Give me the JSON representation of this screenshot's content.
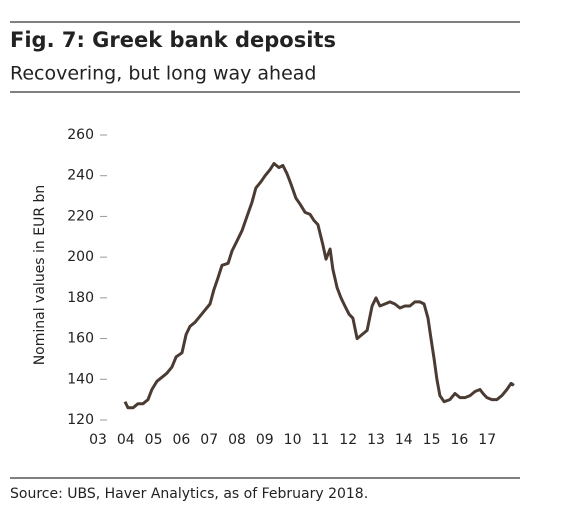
{
  "chart_data": {
    "type": "line",
    "title": "Fig. 7: Greek bank deposits",
    "subtitle": "Recovering, but long way ahead",
    "y_label": "Nominal values in EUR bn",
    "source": "Source: UBS, Haver Analytics, as of February 2018.",
    "series": [
      {
        "name": "Greek bank deposits",
        "color": "#4a3b33",
        "x": [
          2003.97,
          2004.08,
          2004.26,
          2004.44,
          2004.62,
          2004.8,
          2004.94,
          2005.12,
          2005.3,
          2005.48,
          2005.66,
          2005.81,
          2006.02,
          2006.17,
          2006.31,
          2006.49,
          2006.67,
          2006.85,
          2007.03,
          2007.17,
          2007.32,
          2007.46,
          2007.68,
          2007.82,
          2008.0,
          2008.18,
          2008.36,
          2008.54,
          2008.68,
          2008.86,
          2009.01,
          2009.19,
          2009.33,
          2009.51,
          2009.65,
          2009.8,
          2009.94,
          2010.12,
          2010.27,
          2010.45,
          2010.63,
          2010.77,
          2010.91,
          2011.09,
          2011.2,
          2011.35,
          2011.45,
          2011.6,
          2011.74,
          2011.88,
          2012.03,
          2012.17,
          2012.32,
          2012.5,
          2012.68,
          2012.86,
          2013.0,
          2013.14,
          2013.32,
          2013.5,
          2013.68,
          2013.86,
          2014.04,
          2014.22,
          2014.4,
          2014.58,
          2014.73,
          2014.87,
          2014.98,
          2015.09,
          2015.19,
          2015.3,
          2015.45,
          2015.66,
          2015.84,
          2016.02,
          2016.2,
          2016.38,
          2016.56,
          2016.74,
          2016.85,
          2016.99,
          2017.17,
          2017.35,
          2017.53,
          2017.71,
          2017.86,
          2017.96
        ],
        "values": [
          129,
          126,
          126,
          128,
          128,
          130,
          135,
          139,
          141,
          143,
          146,
          151,
          153,
          162,
          166,
          168,
          171,
          174,
          177,
          184,
          190,
          196,
          197,
          203,
          208,
          213,
          220,
          227,
          234,
          237,
          240,
          243,
          246,
          244,
          245,
          241,
          236,
          229,
          226,
          222,
          221,
          218,
          216,
          206,
          199,
          204,
          194,
          185,
          180,
          176,
          172,
          170,
          160,
          162,
          164,
          176,
          180,
          176,
          177,
          178,
          177,
          175,
          176,
          176,
          178,
          178,
          177,
          170,
          160,
          150,
          140,
          132,
          129,
          130,
          133,
          131,
          131,
          132,
          134,
          135,
          133,
          131,
          130,
          130,
          132,
          135,
          138,
          137
        ]
      }
    ],
    "xlim": [
      2003,
      2018
    ],
    "xticks": [
      {
        "value": 2003,
        "label": "03"
      },
      {
        "value": 2004,
        "label": "04"
      },
      {
        "value": 2005,
        "label": "05"
      },
      {
        "value": 2006,
        "label": "06"
      },
      {
        "value": 2007,
        "label": "07"
      },
      {
        "value": 2008,
        "label": "08"
      },
      {
        "value": 2009,
        "label": "09"
      },
      {
        "value": 2010,
        "label": "10"
      },
      {
        "value": 2011,
        "label": "11"
      },
      {
        "value": 2012,
        "label": "12"
      },
      {
        "value": 2013,
        "label": "13"
      },
      {
        "value": 2014,
        "label": "14"
      },
      {
        "value": 2015,
        "label": "15"
      },
      {
        "value": 2016,
        "label": "16"
      },
      {
        "value": 2017,
        "label": "17"
      }
    ],
    "ylim": [
      120,
      260
    ],
    "yticks": [
      120,
      140,
      160,
      180,
      200,
      220,
      240,
      260
    ]
  }
}
